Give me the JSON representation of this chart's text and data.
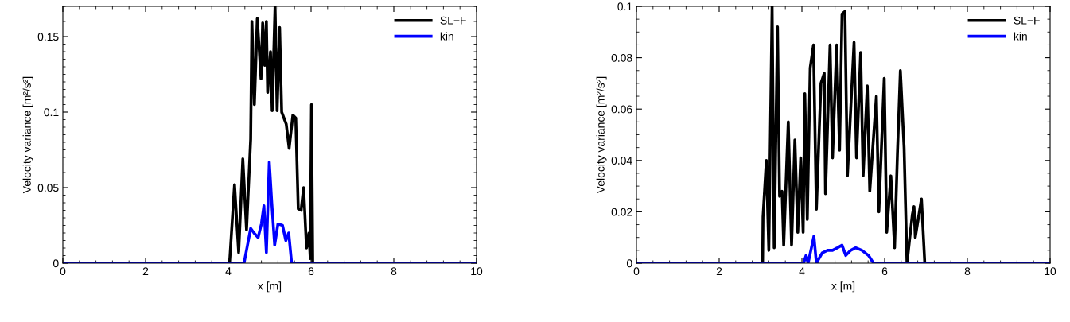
{
  "chart_data": [
    {
      "type": "line",
      "xlabel": "x [m]",
      "ylabel": "Velocity variance [m²/s²]",
      "xlim": [
        0,
        10
      ],
      "ylim": [
        0,
        0.17
      ],
      "xticks": [
        0,
        2,
        4,
        6,
        8,
        10
      ],
      "yticks": [
        0,
        0.05,
        0.1,
        0.15
      ],
      "legend": "top right",
      "series": [
        {
          "name": "SL−F",
          "color": "#000000",
          "x": [
            0,
            4.03,
            4.15,
            4.25,
            4.35,
            4.44,
            4.54,
            4.57,
            4.63,
            4.7,
            4.79,
            4.83,
            4.88,
            4.92,
            4.95,
            5.02,
            5.06,
            5.13,
            5.18,
            5.24,
            5.29,
            5.4,
            5.47,
            5.56,
            5.63,
            5.69,
            5.76,
            5.82,
            5.89,
            5.95,
            5.98,
            6.01,
            6.04,
            10
          ],
          "values": [
            0,
            0,
            0.052,
            0.007,
            0.069,
            0.022,
            0.082,
            0.16,
            0.105,
            0.162,
            0.122,
            0.159,
            0.131,
            0.16,
            0.113,
            0.14,
            0.101,
            0.17,
            0.101,
            0.156,
            0.1,
            0.092,
            0.076,
            0.098,
            0.096,
            0.036,
            0.035,
            0.05,
            0.01,
            0.02,
            0.003,
            0.105,
            0,
            0
          ]
        },
        {
          "name": "kin",
          "color": "#0000ff",
          "x": [
            0,
            4.38,
            4.54,
            4.62,
            4.72,
            4.8,
            4.86,
            4.92,
            4.99,
            5.05,
            5.12,
            5.2,
            5.31,
            5.39,
            5.46,
            5.53,
            10
          ],
          "values": [
            0,
            0,
            0.023,
            0.02,
            0.017,
            0.026,
            0.038,
            0.007,
            0.067,
            0.04,
            0.012,
            0.026,
            0.025,
            0.015,
            0.02,
            0,
            0
          ]
        }
      ]
    },
    {
      "type": "line",
      "xlabel": "x [m]",
      "ylabel": "Velocity variance [m²/s²]",
      "xlim": [
        0,
        10
      ],
      "ylim": [
        0,
        0.1
      ],
      "xticks": [
        0,
        2,
        4,
        6,
        8,
        10
      ],
      "yticks": [
        0,
        0.02,
        0.04,
        0.06,
        0.08,
        0.1
      ],
      "legend": "top right",
      "series": [
        {
          "name": "SL−F",
          "color": "#000000",
          "x": [
            0,
            3.05,
            3.06,
            3.14,
            3.2,
            3.28,
            3.33,
            3.41,
            3.46,
            3.52,
            3.56,
            3.67,
            3.75,
            3.83,
            3.9,
            3.97,
            4.03,
            4.07,
            4.13,
            4.2,
            4.28,
            4.35,
            4.46,
            4.54,
            4.57,
            4.68,
            4.74,
            4.84,
            4.91,
            4.97,
            5.04,
            5.1,
            5.26,
            5.32,
            5.42,
            5.48,
            5.58,
            5.64,
            5.8,
            5.86,
            5.99,
            6.05,
            6.15,
            6.24,
            6.31,
            6.38,
            6.47,
            6.54,
            6.67,
            6.71,
            6.74,
            6.89,
            6.97,
            10
          ],
          "values": [
            0,
            0,
            0.018,
            0.04,
            0.005,
            0.1,
            0.006,
            0.092,
            0.026,
            0.028,
            0.007,
            0.055,
            0.007,
            0.048,
            0.012,
            0.041,
            0.012,
            0.066,
            0.017,
            0.076,
            0.085,
            0.021,
            0.07,
            0.074,
            0.027,
            0.085,
            0.041,
            0.085,
            0.044,
            0.097,
            0.098,
            0.034,
            0.086,
            0.041,
            0.082,
            0.034,
            0.069,
            0.028,
            0.065,
            0.02,
            0.072,
            0.012,
            0.034,
            0.006,
            0.043,
            0.075,
            0.045,
            0,
            0.019,
            0.022,
            0.01,
            0.025,
            0,
            0
          ]
        },
        {
          "name": "kin",
          "color": "#0000ff",
          "x": [
            0,
            4.04,
            4.1,
            4.15,
            4.29,
            4.35,
            4.49,
            4.62,
            4.74,
            4.86,
            4.97,
            5.06,
            5.18,
            5.3,
            5.45,
            5.61,
            5.73,
            10
          ],
          "values": [
            0,
            0,
            0.003,
            0,
            0.0105,
            0,
            0.004,
            0.005,
            0.005,
            0.006,
            0.007,
            0.003,
            0.005,
            0.006,
            0.005,
            0.003,
            0,
            0
          ]
        }
      ]
    }
  ]
}
